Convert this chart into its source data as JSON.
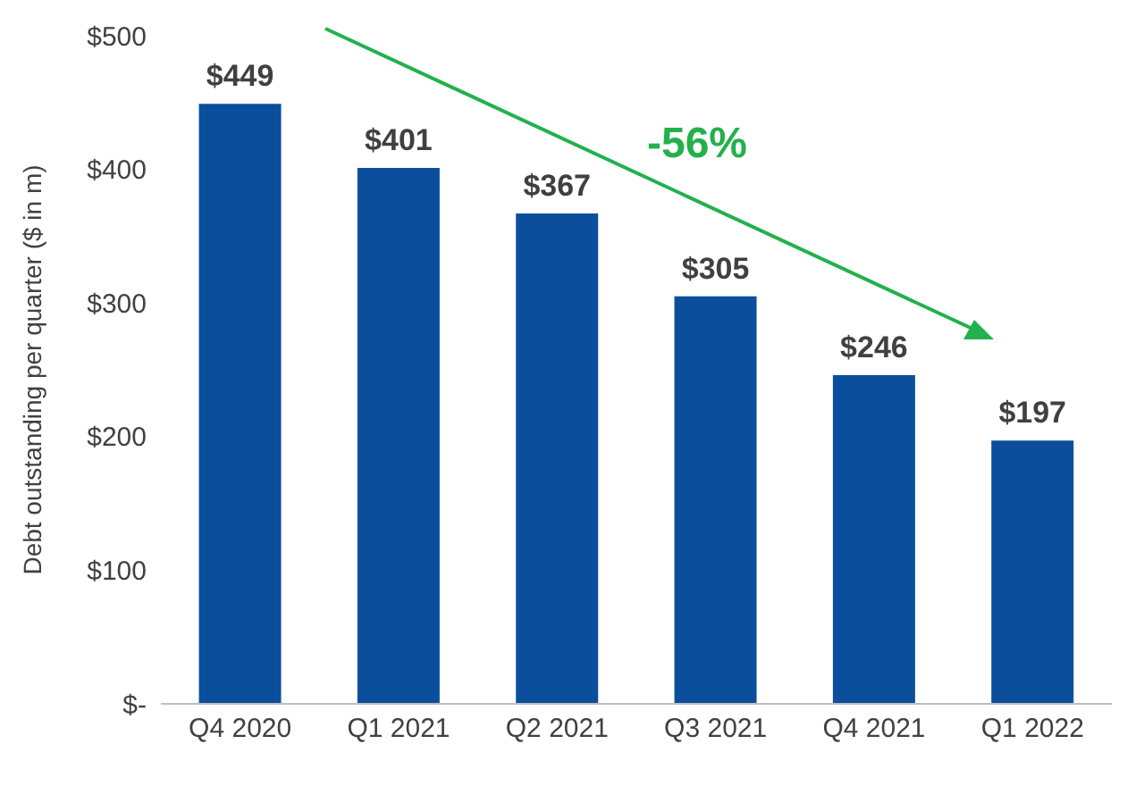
{
  "chart_data": {
    "type": "bar",
    "ylabel": "Debt outstanding per quarter ($ in m)",
    "categories": [
      "Q4 2020",
      "Q1 2021",
      "Q2 2021",
      "Q3 2021",
      "Q4 2021",
      "Q1 2022"
    ],
    "series": [
      {
        "color": "#0b4f9c",
        "values": [
          449,
          401,
          367,
          305,
          246,
          197
        ],
        "value_labels": [
          "$449",
          "$401",
          "$367",
          "$305",
          "$246",
          "$197"
        ]
      }
    ],
    "ylim": [
      0,
      500
    ],
    "yticks": [
      {
        "value": 0,
        "label": "$-"
      },
      {
        "value": 100,
        "label": "$100"
      },
      {
        "value": 200,
        "label": "$200"
      },
      {
        "value": 300,
        "label": "$300"
      },
      {
        "value": 400,
        "label": "$400"
      },
      {
        "value": 500,
        "label": "$500"
      }
    ],
    "annotations": [
      "-56%"
    ],
    "grid": false,
    "legend": false
  }
}
